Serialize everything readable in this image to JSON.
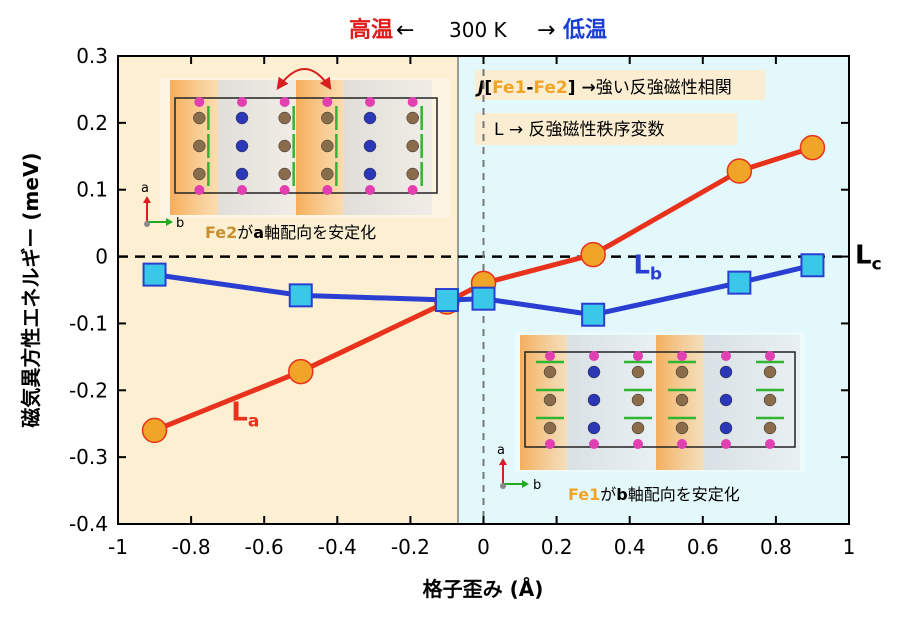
{
  "header": {
    "high_temp": "高温",
    "left_arrow": "←",
    "temperature": "300 K",
    "right_arrow": "→",
    "low_temp": "低温"
  },
  "legend_box": {
    "line1_prefix": "J",
    "line1_bracket_open": "[",
    "line1_fe1": "Fe1",
    "line1_dash": "-",
    "line1_fe2": "Fe2",
    "line1_bracket_close": "]",
    "line1_arrow": "→",
    "line1_text": "強い反強磁性相関",
    "line2": "L → 反強磁性秩序変数"
  },
  "insets": {
    "left_caption_fe": "Fe2",
    "left_caption_ga": "が",
    "left_caption_axis": "a",
    "left_caption_rest": "軸配向を安定化",
    "right_caption_fe": "Fe1",
    "right_caption_ga": "が",
    "right_caption_axis": "b",
    "right_caption_rest": "軸配向を安定化",
    "axis_a": "a",
    "axis_b": "b"
  },
  "colors": {
    "la_line": "#e8321c",
    "la_marker": "#f0a428",
    "lb_line": "#2a3fd1",
    "lb_marker": "#3ac8e8",
    "left_region": "#fcefd2",
    "right_region": "#e3f8fa",
    "high_temp": "#e01b1b",
    "low_temp": "#1a3fd8",
    "fe_orange": "#f0a428"
  },
  "chart_data": {
    "type": "line",
    "xlabel": "格子歪み (Å)",
    "ylabel": "磁気異方性エネルギー (meV)",
    "xlim": [
      -1,
      1
    ],
    "ylim": [
      -0.4,
      0.3
    ],
    "xticks": [
      "-1",
      "-0.8",
      "-0.6",
      "-0.4",
      "-0.2",
      "0",
      "0.2",
      "0.4",
      "0.6",
      "0.8",
      "1"
    ],
    "yticks": [
      "0.3",
      "0.2",
      "0.1",
      "0",
      "-0.1",
      "-0.2",
      "-0.3",
      "-0.4"
    ],
    "series": [
      {
        "name": "La",
        "label_main": "L",
        "label_sub": "a",
        "x": [
          -0.9,
          -0.5,
          -0.1,
          0.0,
          0.3,
          0.7,
          0.9
        ],
        "y": [
          -0.26,
          -0.172,
          -0.068,
          -0.04,
          0.003,
          0.128,
          0.163
        ]
      },
      {
        "name": "Lb",
        "label_main": "L",
        "label_sub": "b",
        "x": [
          -0.9,
          -0.5,
          -0.1,
          0.0,
          0.3,
          0.7,
          0.9
        ],
        "y": [
          -0.027,
          -0.058,
          -0.065,
          -0.063,
          -0.087,
          -0.039,
          -0.013
        ]
      }
    ],
    "reference_line": {
      "y": 0,
      "label_main": "L",
      "label_sub": "c"
    },
    "divider_x": 0
  }
}
